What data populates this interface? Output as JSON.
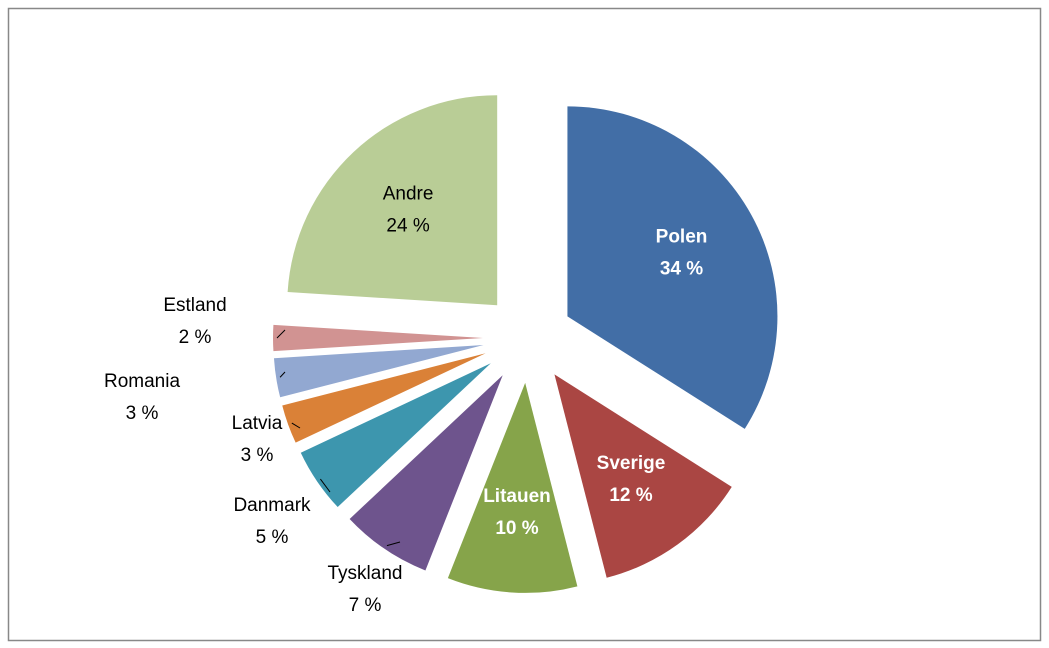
{
  "chart_data": {
    "type": "pie",
    "categories": [
      "Polen",
      "Sverige",
      "Litauen",
      "Tyskland",
      "Danmark",
      "Latvia",
      "Romania",
      "Estland",
      "Andre"
    ],
    "values": [
      34,
      12,
      10,
      7,
      5,
      3,
      3,
      2,
      24
    ],
    "value_labels": [
      "34 %",
      "12 %",
      "10 %",
      "7 %",
      "5 %",
      "3 %",
      "3 %",
      "2 %",
      "24 %"
    ],
    "colors": [
      "#426ea6",
      "#aa4643",
      "#86a44a",
      "#6e548d",
      "#3d96ae",
      "#da8137",
      "#92a8d1",
      "#d19392",
      "#b9cd96"
    ],
    "start_angle": 0,
    "direction": "clockwise",
    "exploded": true
  }
}
